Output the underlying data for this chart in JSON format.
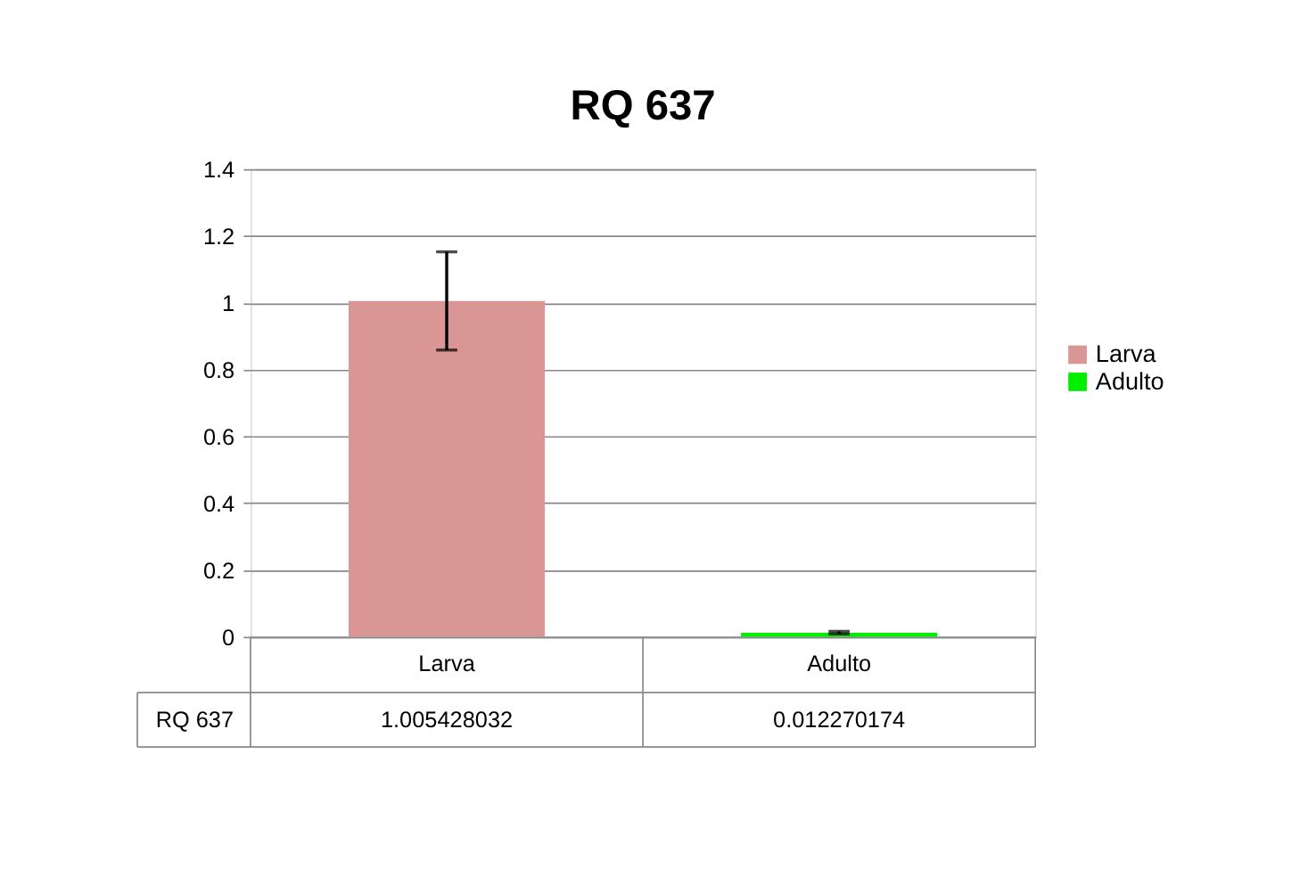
{
  "chart_data": {
    "type": "bar",
    "title": "RQ 637",
    "categories": [
      "Larva",
      "Adulto"
    ],
    "series": [
      {
        "name": "Larva",
        "color": "#d99694",
        "values": [
          1.005428032,
          null
        ],
        "errors": [
          0.147,
          null
        ]
      },
      {
        "name": "Adulto",
        "color": "#00ee00",
        "values": [
          null,
          0.012270174
        ],
        "errors": [
          null,
          0.004
        ]
      }
    ],
    "ylim": [
      0,
      1.4
    ],
    "yticks": [
      {
        "value": 0,
        "label": "0"
      },
      0.2,
      0.4,
      0.6,
      0.8,
      {
        "value": 1,
        "label": "1"
      },
      1.2,
      1.4
    ],
    "grid": "y",
    "legend": "right",
    "annotations": [
      "RQ 637",
      "1.005428032",
      "0.012270174"
    ]
  }
}
